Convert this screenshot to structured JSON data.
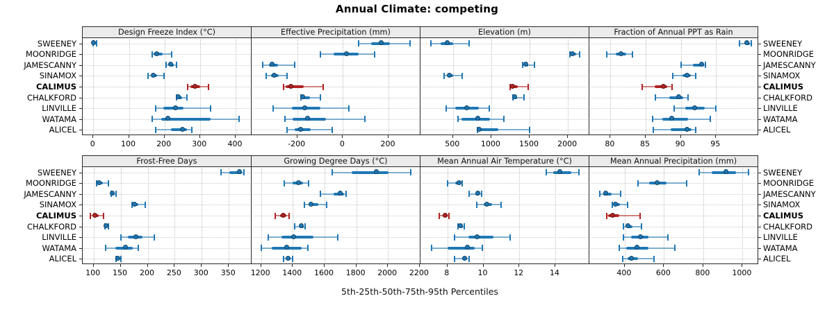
{
  "title": "Annual Climate: competing",
  "caption": "5th-25th-50th-75th-95th Percentiles",
  "highlight_site": "CALIMUS",
  "colors": {
    "series_default": "#1f77b4",
    "series_highlight": "#b22222",
    "strip_background": "#ebebeb",
    "panel_border": "#262626",
    "gridline": "#c9c9c9"
  },
  "chart_data": {
    "type": "dotplot-percentiles",
    "title": "Annual Climate: competing",
    "caption": "5th-25th-50th-75th-95th Percentiles",
    "percentiles": [
      5,
      25,
      50,
      75,
      95
    ],
    "legend_position": "none",
    "grid": "dotted",
    "layout": {
      "rows": 2,
      "cols": 4
    },
    "categories": [
      "SWEENEY",
      "MOONRIDGE",
      "JAMESCANNY",
      "SINAMOX",
      "CALIMUS",
      "CHALKFORD",
      "LINVILLE",
      "WATAMA",
      "ALICEL"
    ],
    "panels": [
      {
        "title": "Design Freeze Index (°C)",
        "xlim": [
          -30,
          445
        ],
        "ticks": [
          0,
          100,
          200,
          300,
          400
        ],
        "values": [
          [
            0,
            1,
            3,
            5,
            9
          ],
          [
            165,
            170,
            180,
            195,
            220
          ],
          [
            205,
            214,
            220,
            226,
            234
          ],
          [
            154,
            163,
            171,
            180,
            199
          ],
          [
            265,
            273,
            287,
            300,
            323
          ],
          [
            234,
            238,
            241,
            250,
            263
          ],
          [
            176,
            196,
            233,
            253,
            330
          ],
          [
            165,
            190,
            212,
            330,
            410
          ],
          [
            176,
            218,
            253,
            263,
            276
          ]
        ]
      },
      {
        "title": "Effective Precipitation (mm)",
        "xlim": [
          -400,
          340
        ],
        "ticks": [
          -200,
          0,
          200
        ],
        "values": [
          [
            70,
            125,
            170,
            205,
            295
          ],
          [
            -100,
            -40,
            20,
            70,
            140
          ],
          [
            -350,
            -325,
            -306,
            -285,
            -210
          ],
          [
            -336,
            -315,
            -297,
            -282,
            -245
          ],
          [
            -260,
            -250,
            -225,
            -172,
            -85
          ],
          [
            -185,
            -180,
            -172,
            -145,
            -100
          ],
          [
            -305,
            -225,
            -165,
            -100,
            25
          ],
          [
            -255,
            -220,
            -152,
            -73,
            95
          ],
          [
            -245,
            -212,
            -182,
            -140,
            -48
          ]
        ]
      },
      {
        "title": "Elevation (m)",
        "xlim": [
          75,
          2280
        ],
        "ticks": [
          500,
          1000,
          1500,
          2000
        ],
        "values": [
          [
            210,
            340,
            430,
            500,
            710
          ],
          [
            2030,
            2050,
            2065,
            2110,
            2155
          ],
          [
            1410,
            1435,
            1456,
            1480,
            1565
          ],
          [
            380,
            425,
            462,
            500,
            620
          ],
          [
            1245,
            1258,
            1290,
            1345,
            1480
          ],
          [
            1280,
            1295,
            1310,
            1340,
            1430
          ],
          [
            410,
            525,
            690,
            835,
            975
          ],
          [
            565,
            610,
            828,
            980,
            1165
          ],
          [
            818,
            828,
            846,
            1090,
            1500
          ]
        ]
      },
      {
        "title": "Fraction of Annual PPT as Rain",
        "xlim": [
          77,
          101
        ],
        "ticks": [
          80,
          85,
          90,
          95
        ],
        "values": [
          [
            98.3,
            99.1,
            99.5,
            99.8,
            100
          ],
          [
            79.5,
            80.7,
            81.6,
            82.2,
            83.1
          ],
          [
            90,
            91.7,
            93,
            93.3,
            93.5
          ],
          [
            88.8,
            90.2,
            91,
            91.4,
            92.1
          ],
          [
            84.5,
            86.3,
            87.6,
            88.1,
            88.7
          ],
          [
            86.4,
            88.4,
            89.8,
            90.3,
            91
          ],
          [
            89,
            90.6,
            92.1,
            93.4,
            95
          ],
          [
            86,
            87.4,
            88.8,
            91,
            94.2
          ],
          [
            86.1,
            88.6,
            91,
            91.5,
            92.1
          ]
        ]
      },
      {
        "title": "Frost-Free Days",
        "xlim": [
          80,
          392
        ],
        "ticks": [
          100,
          150,
          200,
          250,
          300,
          350
        ],
        "values": [
          [
            336,
            351,
            371,
            374,
            378
          ],
          [
            105,
            109,
            112,
            117,
            128
          ],
          [
            132,
            134,
            136,
            138,
            141
          ],
          [
            171,
            174,
            177,
            183,
            196
          ],
          [
            94,
            99,
            104,
            109,
            118
          ],
          [
            121,
            122,
            124,
            125,
            127
          ],
          [
            151,
            164,
            179,
            190,
            212
          ],
          [
            122,
            140,
            160,
            172,
            183
          ],
          [
            141,
            143,
            146,
            149,
            151
          ]
        ]
      },
      {
        "title": "Growing Degree Days (°C)",
        "xlim": [
          1140,
          2205
        ],
        "ticks": [
          1200,
          1400,
          1600,
          1800,
          2000,
          2200
        ],
        "values": [
          [
            1650,
            1770,
            1930,
            2005,
            2145
          ],
          [
            1345,
            1400,
            1440,
            1465,
            1500
          ],
          [
            1575,
            1655,
            1705,
            1722,
            1737
          ],
          [
            1475,
            1497,
            1520,
            1560,
            1615
          ],
          [
            1290,
            1320,
            1345,
            1360,
            1375
          ],
          [
            1410,
            1440,
            1458,
            1468,
            1477
          ],
          [
            1245,
            1330,
            1410,
            1530,
            1685
          ],
          [
            1200,
            1265,
            1365,
            1455,
            1495
          ],
          [
            1340,
            1358,
            1375,
            1388,
            1398
          ]
        ]
      },
      {
        "title": "Mean Annual Air Temperature (°C)",
        "xlim": [
          6.5,
          15.9
        ],
        "ticks": [
          8,
          10,
          12,
          14
        ],
        "values": [
          [
            13.5,
            13.9,
            14.3,
            14.9,
            15.3
          ],
          [
            8.0,
            8.45,
            8.7,
            8.75,
            8.8
          ],
          [
            9.2,
            9.55,
            9.73,
            9.8,
            9.9
          ],
          [
            9.65,
            10.0,
            10.25,
            10.5,
            11.0
          ],
          [
            7.55,
            7.75,
            7.9,
            8.0,
            8.1
          ],
          [
            8.6,
            8.7,
            8.75,
            8.85,
            8.95
          ],
          [
            8.4,
            9.15,
            9.7,
            10.55,
            11.5
          ],
          [
            7.1,
            8.0,
            9.15,
            9.5,
            9.95
          ],
          [
            8.4,
            8.8,
            9.0,
            9.1,
            9.2
          ]
        ]
      },
      {
        "title": "Mean Annual Precipitation (mm)",
        "xlim": [
          220,
          1080
        ],
        "ticks": [
          400,
          600,
          800,
          1000
        ],
        "values": [
          [
            780,
            842,
            920,
            968,
            1030
          ],
          [
            467,
            525,
            567,
            612,
            715
          ],
          [
            272,
            292,
            308,
            332,
            378
          ],
          [
            335,
            348,
            357,
            375,
            415
          ],
          [
            308,
            316,
            343,
            372,
            478
          ],
          [
            395,
            406,
            421,
            438,
            485
          ],
          [
            395,
            432,
            485,
            520,
            620
          ],
          [
            372,
            407,
            467,
            520,
            655
          ],
          [
            388,
            415,
            436,
            467,
            548
          ]
        ]
      }
    ]
  }
}
